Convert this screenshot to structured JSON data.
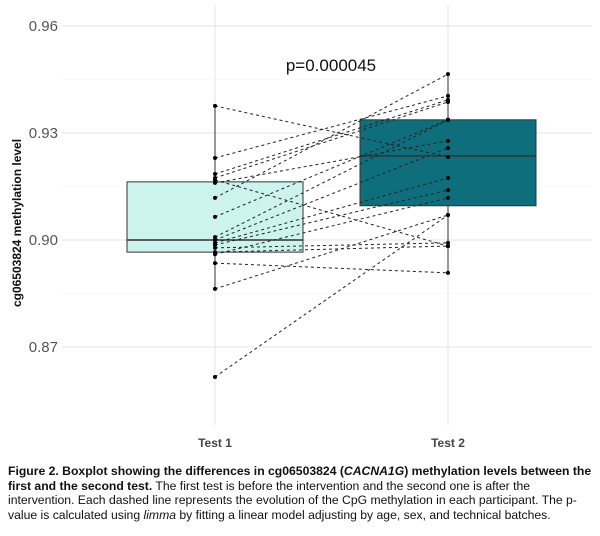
{
  "chart_data": {
    "type": "boxplot",
    "ylabel": "cg06503824 methylation level",
    "categories": [
      "Test 1",
      "Test 2"
    ],
    "ylim": [
      0.85,
      0.965
    ],
    "yticks": [
      0.87,
      0.9,
      0.93,
      0.96
    ],
    "ytick_labels": [
      "0.87",
      "0.90",
      "0.93",
      "0.96"
    ],
    "grid": true,
    "annotation": "p=0.000045",
    "boxes": [
      {
        "category": "Test 1",
        "min": 0.8863,
        "q1": 0.8966,
        "median": 0.9,
        "q3": 0.9163,
        "max": 0.9376,
        "fill": "#cdf3ee"
      },
      {
        "category": "Test 2",
        "min": 0.8908,
        "q1": 0.9096,
        "median": 0.9236,
        "q3": 0.9337,
        "max": 0.9465,
        "fill": "#0e6e7c"
      }
    ],
    "paired_points": [
      [
        0.9376,
        0.9233
      ],
      [
        0.923,
        0.9404
      ],
      [
        0.9185,
        0.9393
      ],
      [
        0.9174,
        0.9387
      ],
      [
        0.9168,
        0.8983
      ],
      [
        0.916,
        0.9278
      ],
      [
        0.9118,
        0.9465
      ],
      [
        0.9065,
        0.9337
      ],
      [
        0.9008,
        0.9337
      ],
      [
        0.9,
        0.9258
      ],
      [
        0.8992,
        0.9174
      ],
      [
        0.8986,
        0.914
      ],
      [
        0.8978,
        0.8992
      ],
      [
        0.8966,
        0.8983
      ],
      [
        0.896,
        0.9118
      ],
      [
        0.8935,
        0.8908
      ],
      [
        0.8863,
        0.907
      ],
      [
        0.8616,
        0.907
      ]
    ]
  },
  "caption": {
    "bold_1": "Figure 2. Boxplot showing the differences in cg06503824 (",
    "bold_italic": "CACNA1G",
    "bold_2": ") methylation levels between the first and the second test.",
    "text_1": " The first test is before the intervention and the second one is after the intervention. Each dashed line represents the evolution of the CpG methylation in each participant. The p-value is calculated using ",
    "italic": "limma",
    "text_2": " by fitting a linear model adjusting by age, sex, and technical batches."
  }
}
